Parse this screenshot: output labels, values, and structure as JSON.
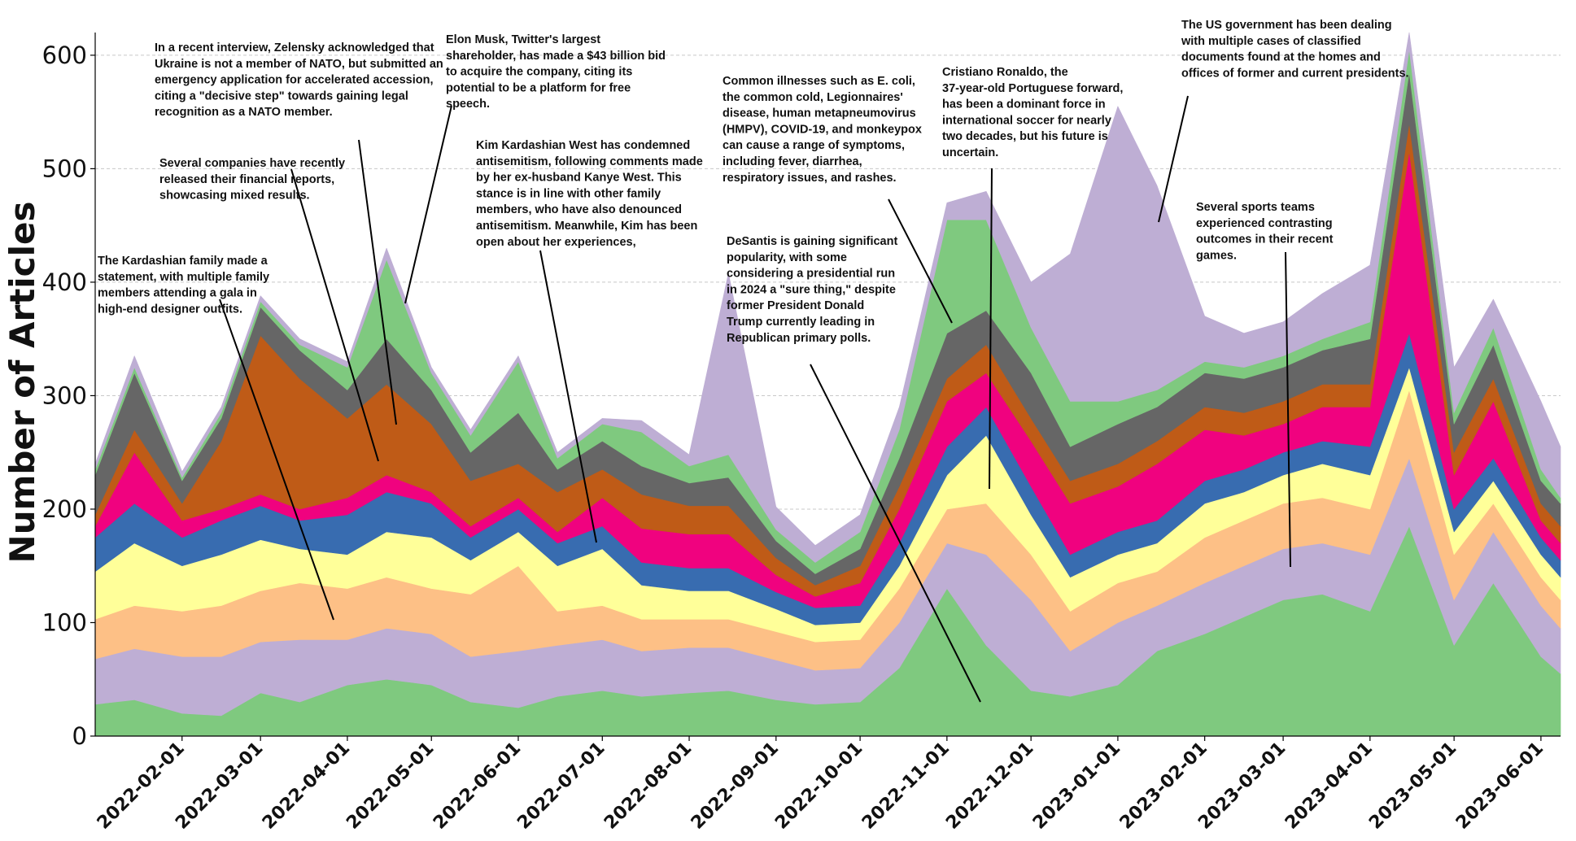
{
  "chart_data": {
    "type": "area",
    "stacked": true,
    "xlabel": "",
    "ylabel": "Number of Articles",
    "ylim": [
      0,
      620
    ],
    "yticks": [
      0,
      100,
      200,
      300,
      400,
      500,
      600
    ],
    "xlim": [
      "2022-01-01",
      "2023-06-08"
    ],
    "xtick_labels": [
      "2022-02-01",
      "2022-03-01",
      "2022-04-01",
      "2022-05-01",
      "2022-06-01",
      "2022-07-01",
      "2022-08-01",
      "2022-09-01",
      "2022-10-01",
      "2022-11-01",
      "2022-12-01",
      "2023-01-01",
      "2023-02-01",
      "2023-03-01",
      "2023-04-01",
      "2023-05-01",
      "2023-06-01"
    ],
    "grid": "horizontal dashed",
    "dates": [
      "2022-01-01",
      "2022-01-15",
      "2022-02-01",
      "2022-02-15",
      "2022-03-01",
      "2022-03-15",
      "2022-04-01",
      "2022-04-15",
      "2022-05-01",
      "2022-05-15",
      "2022-06-01",
      "2022-06-15",
      "2022-07-01",
      "2022-07-15",
      "2022-08-01",
      "2022-08-15",
      "2022-09-01",
      "2022-09-15",
      "2022-10-01",
      "2022-10-15",
      "2022-11-01",
      "2022-11-15",
      "2022-12-01",
      "2022-12-15",
      "2023-01-01",
      "2023-01-15",
      "2023-02-01",
      "2023-02-15",
      "2023-03-01",
      "2023-03-15",
      "2023-04-01",
      "2023-04-15",
      "2023-05-01",
      "2023-05-15",
      "2023-06-01",
      "2023-06-08"
    ],
    "series": [
      {
        "color": "#7fc97f",
        "values": [
          28,
          32,
          20,
          18,
          38,
          30,
          45,
          50,
          45,
          30,
          25,
          35,
          40,
          35,
          38,
          40,
          32,
          28,
          30,
          60,
          130,
          80,
          40,
          35,
          45,
          75,
          90,
          105,
          120,
          125,
          110,
          185,
          80,
          135,
          70,
          55
        ]
      },
      {
        "color": "#beaed4",
        "values": [
          40,
          45,
          50,
          52,
          45,
          55,
          40,
          45,
          45,
          40,
          50,
          45,
          45,
          40,
          40,
          38,
          35,
          30,
          30,
          40,
          40,
          80,
          80,
          40,
          55,
          40,
          45,
          45,
          45,
          45,
          50,
          60,
          40,
          45,
          45,
          40
        ]
      },
      {
        "color": "#fdc086",
        "values": [
          35,
          38,
          40,
          45,
          45,
          50,
          45,
          45,
          40,
          55,
          75,
          30,
          30,
          28,
          25,
          25,
          25,
          25,
          25,
          30,
          30,
          45,
          40,
          35,
          35,
          30,
          40,
          40,
          40,
          40,
          40,
          60,
          40,
          25,
          25,
          25
        ]
      },
      {
        "color": "#ffff99",
        "values": [
          42,
          55,
          40,
          45,
          45,
          30,
          30,
          40,
          45,
          30,
          30,
          40,
          50,
          30,
          25,
          25,
          20,
          15,
          15,
          20,
          30,
          60,
          35,
          30,
          25,
          25,
          30,
          25,
          25,
          30,
          30,
          20,
          20,
          20,
          20,
          20
        ]
      },
      {
        "color": "#386cb0",
        "values": [
          30,
          35,
          25,
          30,
          30,
          25,
          35,
          35,
          30,
          20,
          20,
          20,
          20,
          20,
          20,
          20,
          15,
          15,
          15,
          20,
          25,
          25,
          25,
          20,
          20,
          20,
          20,
          20,
          20,
          20,
          25,
          30,
          20,
          20,
          15,
          15
        ]
      },
      {
        "color": "#f0027f",
        "values": [
          10,
          45,
          15,
          10,
          10,
          10,
          15,
          15,
          10,
          10,
          10,
          10,
          25,
          30,
          30,
          30,
          15,
          10,
          20,
          30,
          40,
          30,
          40,
          45,
          40,
          50,
          45,
          30,
          25,
          30,
          35,
          160,
          30,
          50,
          15,
          15
        ]
      },
      {
        "color": "#bf5b17",
        "values": [
          10,
          20,
          15,
          60,
          140,
          115,
          70,
          80,
          60,
          40,
          30,
          35,
          25,
          30,
          25,
          25,
          15,
          10,
          15,
          20,
          20,
          25,
          20,
          20,
          20,
          20,
          20,
          20,
          20,
          20,
          20,
          25,
          20,
          20,
          15,
          15
        ]
      },
      {
        "color": "#666666",
        "values": [
          35,
          50,
          20,
          20,
          25,
          25,
          25,
          40,
          30,
          25,
          45,
          20,
          25,
          25,
          20,
          25,
          15,
          10,
          15,
          25,
          40,
          30,
          40,
          30,
          35,
          30,
          30,
          30,
          30,
          30,
          40,
          45,
          25,
          30,
          20,
          20
        ]
      },
      {
        "color": "#7fc97f",
        "values": [
          5,
          5,
          3,
          5,
          5,
          5,
          20,
          70,
          15,
          15,
          45,
          10,
          15,
          30,
          15,
          20,
          10,
          10,
          15,
          25,
          100,
          80,
          40,
          40,
          20,
          15,
          10,
          10,
          10,
          10,
          15,
          20,
          10,
          15,
          10,
          5
        ]
      },
      {
        "color": "#beaed4",
        "values": [
          5,
          10,
          5,
          5,
          5,
          5,
          5,
          10,
          5,
          5,
          5,
          5,
          5,
          10,
          10,
          160,
          20,
          15,
          15,
          20,
          15,
          25,
          40,
          130,
          260,
          180,
          40,
          30,
          30,
          40,
          50,
          15,
          40,
          25,
          60,
          45
        ]
      }
    ],
    "annotations": [
      {
        "text": "The Kardashian family made a statement, with multiple family members attending a gala in high-end designer outfits."
      },
      {
        "text": "Several companies have recently released their financial reports, showcasing mixed results."
      },
      {
        "text": "In a recent interview, Zelensky acknowledged that Ukraine is not a member of NATO, but submitted an emergency application for accelerated accession, citing a \"decisive step\" towards gaining legal recognition as a NATO member."
      },
      {
        "text": "Elon Musk, Twitter's largest shareholder, has made a $43 billion bid to acquire the company, citing its potential to be a platform for free speech."
      },
      {
        "text": "Kim Kardashian West has condemned antisemitism, following comments made by her ex-husband Kanye West. This stance is in line with other family members, who have also denounced antisemitism. Meanwhile, Kim has been open about her experiences,"
      },
      {
        "text": "Common illnesses such as E. coli, the common cold, Legionnaires' disease, human metapneumovirus (HMPV), COVID-19, and monkeypox can cause a range of symptoms, including fever, diarrhea, respiratory issues, and rashes."
      },
      {
        "text": "DeSantis is gaining significant popularity, with some considering a presidential run in 2024 a \"sure thing,\" despite former President Donald Trump currently leading in Republican primary polls."
      },
      {
        "text": "Cristiano Ronaldo, the 37-year-old Portuguese forward, has been a dominant force in international soccer for nearly two decades, but his future is uncertain."
      },
      {
        "text": "The US government has been dealing with multiple cases of classified documents found at the homes and offices of former and current presidents."
      },
      {
        "text": "Several sports teams experienced contrasting outcomes in their recent games."
      }
    ]
  }
}
